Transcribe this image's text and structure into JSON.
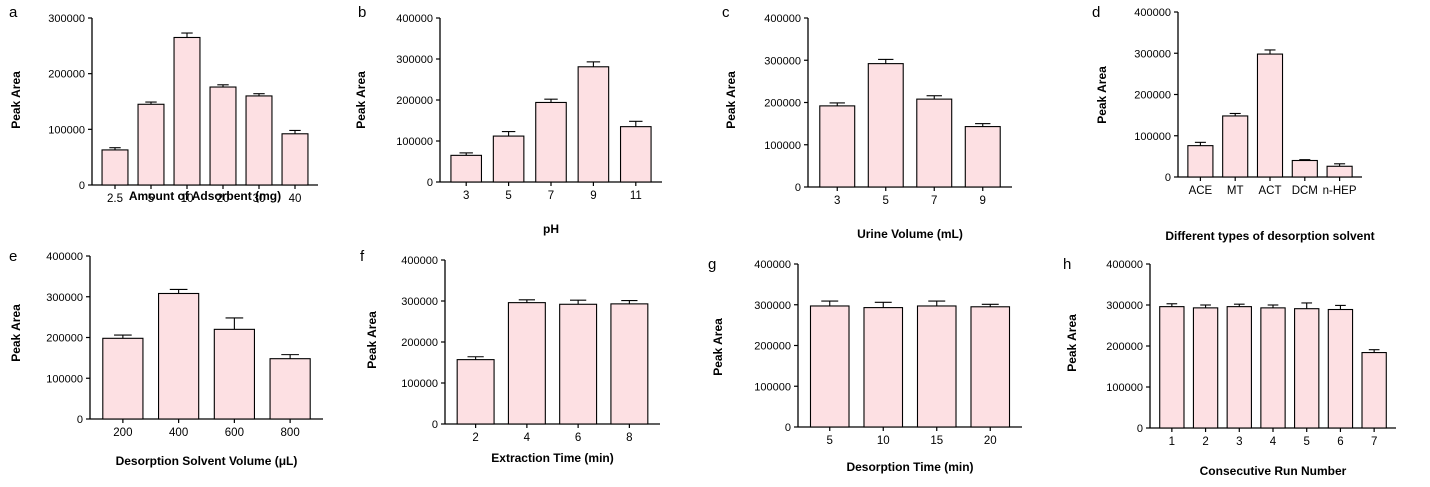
{
  "colors": {
    "bar_fill": "#fde0e3",
    "bar_stroke": "#000000",
    "axis": "#000000"
  },
  "chart_data": [
    {
      "panel": "a",
      "type": "bar",
      "categories": [
        "2.5",
        "5",
        "10",
        "20",
        "30",
        "40"
      ],
      "values": [
        63000,
        145000,
        265000,
        176000,
        160000,
        92000
      ],
      "errors": [
        4000,
        4000,
        8000,
        4000,
        4000,
        6000
      ],
      "xlabel": "Amount of Adsorbent (mg)",
      "ylabel": "Peak Area",
      "ylim": [
        0,
        300000
      ],
      "yticks": [
        "0",
        "100000",
        "200000",
        "300000"
      ],
      "grid": false
    },
    {
      "panel": "b",
      "type": "bar",
      "categories": [
        "3",
        "5",
        "7",
        "9",
        "11"
      ],
      "values": [
        65000,
        112000,
        194000,
        281000,
        135000
      ],
      "errors": [
        6000,
        11000,
        8000,
        12000,
        13000
      ],
      "xlabel": "pH",
      "ylabel": "Peak Area",
      "ylim": [
        0,
        400000
      ],
      "yticks": [
        "0",
        "100000",
        "200000",
        "300000",
        "400000"
      ],
      "grid": false
    },
    {
      "panel": "c",
      "type": "bar",
      "categories": [
        "3",
        "5",
        "7",
        "9"
      ],
      "values": [
        192000,
        292000,
        208000,
        143000
      ],
      "errors": [
        7000,
        10000,
        8000,
        7000
      ],
      "xlabel": "Urine Volume (mL)",
      "ylabel": "Peak Area",
      "ylim": [
        0,
        400000
      ],
      "yticks": [
        "0",
        "100000",
        "200000",
        "300000",
        "400000"
      ],
      "grid": false
    },
    {
      "panel": "d",
      "type": "bar",
      "categories": [
        "ACE",
        "MT",
        "ACT",
        "DCM",
        "n-HEP"
      ],
      "values": [
        76000,
        148000,
        298000,
        40000,
        26000
      ],
      "errors": [
        8000,
        6000,
        10000,
        2000,
        6000
      ],
      "xlabel": "Different types of desorption solvent",
      "ylabel": "Peak Area",
      "ylim": [
        0,
        400000
      ],
      "yticks": [
        "0",
        "100000",
        "200000",
        "300000",
        "400000"
      ],
      "grid": false
    },
    {
      "panel": "e",
      "type": "bar",
      "categories": [
        "200",
        "400",
        "600",
        "800"
      ],
      "values": [
        198000,
        308000,
        220000,
        148000
      ],
      "errors": [
        8000,
        10000,
        28000,
        10000
      ],
      "xlabel": "Desorption Solvent Volume (μL)",
      "ylabel": "Peak Area",
      "ylim": [
        0,
        400000
      ],
      "yticks": [
        "0",
        "100000",
        "200000",
        "300000",
        "400000"
      ],
      "grid": false
    },
    {
      "panel": "f",
      "type": "bar",
      "categories": [
        "2",
        "4",
        "6",
        "8"
      ],
      "values": [
        157000,
        296000,
        292000,
        293000
      ],
      "errors": [
        7000,
        7000,
        10000,
        8000
      ],
      "xlabel": "Extraction Time (min)",
      "ylabel": "Peak Area",
      "ylim": [
        0,
        400000
      ],
      "yticks": [
        "0",
        "100000",
        "200000",
        "300000",
        "400000"
      ],
      "grid": false
    },
    {
      "panel": "g",
      "type": "bar",
      "categories": [
        "5",
        "10",
        "15",
        "20"
      ],
      "values": [
        297000,
        293000,
        297000,
        295000
      ],
      "errors": [
        12000,
        13000,
        12000,
        6000
      ],
      "xlabel": "Desorption Time (min)",
      "ylabel": "Peak Area",
      "ylim": [
        0,
        400000
      ],
      "yticks": [
        "0",
        "100000",
        "200000",
        "300000",
        "400000"
      ],
      "grid": false
    },
    {
      "panel": "h",
      "type": "bar",
      "categories": [
        "1",
        "2",
        "3",
        "4",
        "5",
        "6",
        "7"
      ],
      "values": [
        296000,
        293000,
        296000,
        293000,
        291000,
        289000,
        184000
      ],
      "errors": [
        7000,
        7000,
        6000,
        7000,
        14000,
        10000,
        7000
      ],
      "xlabel": "Consecutive Run Number",
      "ylabel": "Peak Area",
      "ylim": [
        0,
        400000
      ],
      "yticks": [
        "0",
        "100000",
        "200000",
        "300000",
        "400000"
      ],
      "grid": false
    }
  ]
}
